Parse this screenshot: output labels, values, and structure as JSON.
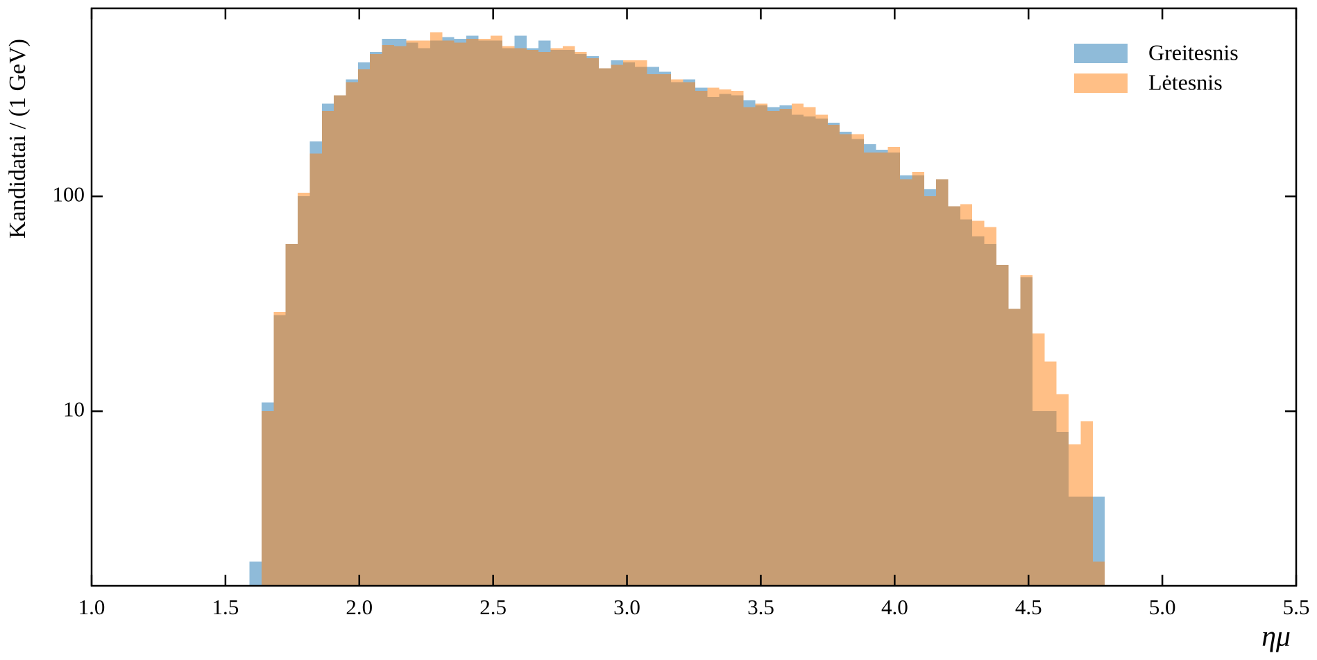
{
  "chart_data": {
    "type": "histogram",
    "xlabel": "ημ",
    "ylabel": "Kandidatai / (1 GeV)",
    "bins": [
      1.59,
      1.635,
      1.68,
      1.725,
      1.77,
      1.815,
      1.86,
      1.905,
      1.95,
      1.995,
      2.04,
      2.085,
      2.13,
      2.175,
      2.22,
      2.265,
      2.31,
      2.355,
      2.4,
      2.445,
      2.49,
      2.535,
      2.58,
      2.625,
      2.67,
      2.715,
      2.76,
      2.805,
      2.85,
      2.895,
      2.94,
      2.985,
      3.03,
      3.075,
      3.12,
      3.165,
      3.21,
      3.255,
      3.3,
      3.345,
      3.39,
      3.435,
      3.48,
      3.525,
      3.57,
      3.615,
      3.66,
      3.705,
      3.75,
      3.795,
      3.84,
      3.885,
      3.93,
      3.975,
      4.02,
      4.065,
      4.11,
      4.155,
      4.2,
      4.245,
      4.29,
      4.335,
      4.38,
      4.425,
      4.47,
      4.515,
      4.56,
      4.605,
      4.65,
      4.695,
      4.74,
      4.785
    ],
    "series": [
      {
        "name": "Greitesnis",
        "color": "#1f77b4",
        "values": [
          2,
          11,
          28,
          60,
          100,
          180,
          270,
          295,
          350,
          420,
          470,
          540,
          540,
          520,
          490,
          530,
          550,
          540,
          560,
          530,
          530,
          490,
          560,
          490,
          530,
          480,
          480,
          460,
          450,
          395,
          430,
          420,
          400,
          400,
          380,
          340,
          350,
          320,
          290,
          300,
          295,
          280,
          265,
          260,
          265,
          240,
          235,
          230,
          220,
          200,
          185,
          175,
          165,
          160,
          125,
          125,
          108,
          120,
          90,
          78,
          65,
          60,
          48,
          30,
          42,
          10,
          10,
          8,
          4,
          4,
          4
        ]
      },
      {
        "name": "Lėtesnis",
        "color": "#ff7f0e",
        "values": [
          0,
          10,
          29,
          60,
          104,
          158,
          250,
          295,
          340,
          390,
          460,
          505,
          500,
          530,
          530,
          580,
          530,
          520,
          540,
          540,
          560,
          500,
          490,
          480,
          470,
          490,
          500,
          470,
          440,
          395,
          410,
          430,
          430,
          370,
          370,
          350,
          340,
          310,
          320,
          315,
          310,
          260,
          270,
          250,
          255,
          270,
          260,
          240,
          215,
          195,
          195,
          160,
          160,
          170,
          120,
          130,
          100,
          120,
          90,
          92,
          77,
          72,
          48,
          30,
          43,
          23,
          17,
          12,
          7,
          9,
          2
        ]
      }
    ],
    "xlim": [
      1.0,
      5.5
    ],
    "xticks": [
      {
        "value": 1.0,
        "label": "1.0"
      },
      {
        "value": 1.5,
        "label": "1.5"
      },
      {
        "value": 2.0,
        "label": "2.0"
      },
      {
        "value": 2.5,
        "label": "2.5"
      },
      {
        "value": 3.0,
        "label": "3.0"
      },
      {
        "value": 3.5,
        "label": "3.5"
      },
      {
        "value": 4.0,
        "label": "4.0"
      },
      {
        "value": 4.5,
        "label": "4.5"
      },
      {
        "value": 5.0,
        "label": "5.0"
      },
      {
        "value": 5.5,
        "label": "5.5"
      }
    ],
    "ylim": [
      1.54,
      750
    ],
    "yticks": [
      10,
      100
    ],
    "ylog": true,
    "legend": "upper right"
  }
}
